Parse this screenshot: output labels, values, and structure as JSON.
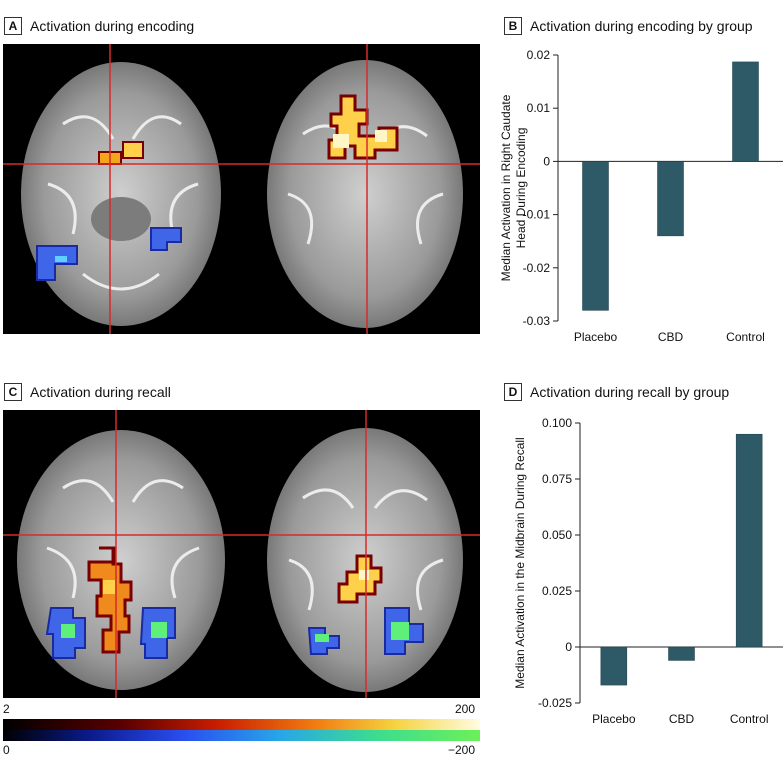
{
  "panels": {
    "a": {
      "letter": "A",
      "title": "Activation during encoding"
    },
    "b": {
      "letter": "B",
      "title": "Activation during encoding by group"
    },
    "c": {
      "letter": "C",
      "title": "Activation during recall"
    },
    "d": {
      "letter": "D",
      "title": "Activation during recall by group"
    }
  },
  "colorbar": {
    "top_min": "2",
    "top_max": "200",
    "bottom_min": "0",
    "bottom_max": "−200"
  },
  "colors": {
    "bar": "#2d5a66",
    "crosshair": "#d62a2a"
  },
  "chart_data": [
    {
      "type": "bar",
      "categories": [
        "Placebo",
        "CBD",
        "Control"
      ],
      "values": [
        -0.028,
        -0.014,
        0.0187
      ],
      "ylabel": "Median Activation in Right Caudate Head During Encoding",
      "ylim": [
        -0.03,
        0.02
      ],
      "yticks": [
        "0.02",
        "0.01",
        "0",
        "-0.01",
        "-0.02",
        "-0.03"
      ],
      "ytick_values": [
        0.02,
        0.01,
        0,
        -0.01,
        -0.02,
        -0.03
      ]
    },
    {
      "type": "bar",
      "categories": [
        "Placebo",
        "CBD",
        "Control"
      ],
      "values": [
        -0.017,
        -0.006,
        0.095
      ],
      "ylabel": "Median Activation in the Midbrain During Recall",
      "ylim": [
        -0.025,
        0.1
      ],
      "yticks": [
        "0.100",
        "0.075",
        "0.050",
        "0.025",
        "0",
        "-0.025"
      ],
      "ytick_values": [
        0.1,
        0.075,
        0.05,
        0.025,
        0,
        -0.025
      ]
    }
  ]
}
